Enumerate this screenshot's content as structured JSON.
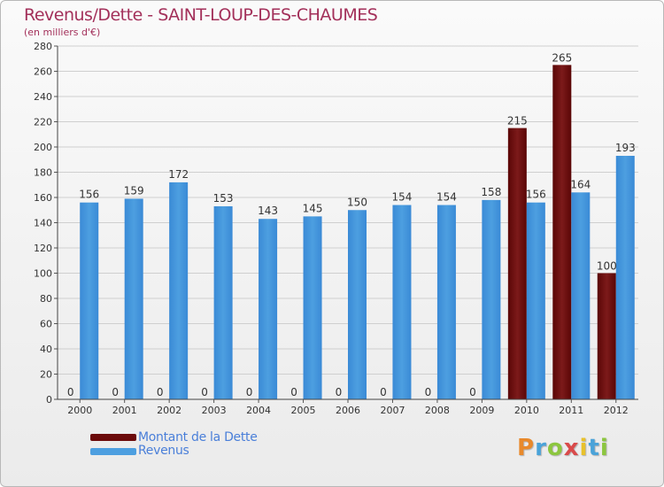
{
  "title": "Revenus/Dette - SAINT-LOUP-DES-CHAUMES",
  "subtitle": "(en milliers d'€)",
  "colors": {
    "dette": "#6b0a0a",
    "revenus": "#4d9fe0",
    "title": "#a3305a",
    "legend_text": "#4a7fd9"
  },
  "legend": {
    "dette_label": "Montant de la Dette",
    "revenus_label": "Revenus"
  },
  "logo": {
    "text": "Proxiti"
  },
  "chart_data": {
    "type": "bar",
    "categories": [
      "2000",
      "2001",
      "2002",
      "2003",
      "2004",
      "2005",
      "2006",
      "2007",
      "2008",
      "2009",
      "2010",
      "2011",
      "2012"
    ],
    "series": [
      {
        "name": "Montant de la Dette",
        "values": [
          0,
          0,
          0,
          0,
          0,
          0,
          0,
          0,
          0,
          0,
          215,
          265,
          100
        ]
      },
      {
        "name": "Revenus",
        "values": [
          156,
          159,
          172,
          153,
          143,
          145,
          150,
          154,
          154,
          158,
          156,
          164,
          193
        ]
      }
    ],
    "ylim": [
      0,
      280
    ],
    "yticks": [
      0,
      20,
      40,
      60,
      80,
      100,
      120,
      140,
      160,
      180,
      200,
      220,
      240,
      260,
      280
    ],
    "grid": true,
    "legend_position": "bottom-left"
  }
}
